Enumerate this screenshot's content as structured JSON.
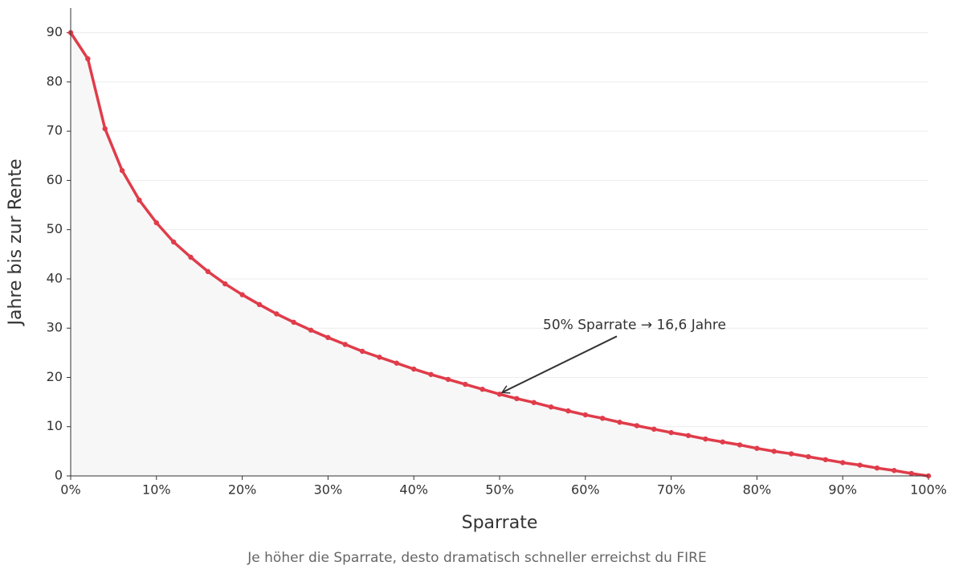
{
  "chart_data": {
    "type": "line",
    "x_label": "Sparrate",
    "y_label": "Jahre bis zur Rente",
    "caption": "Je höher die Sparrate, desto dramatisch schneller erreichst du FIRE",
    "x": [
      0,
      2,
      4,
      6,
      8,
      10,
      12,
      14,
      16,
      18,
      20,
      22,
      24,
      26,
      28,
      30,
      32,
      34,
      36,
      38,
      40,
      42,
      44,
      46,
      48,
      50,
      52,
      54,
      56,
      58,
      60,
      62,
      64,
      66,
      68,
      70,
      72,
      74,
      76,
      78,
      80,
      82,
      84,
      86,
      88,
      90,
      92,
      94,
      96,
      98,
      100
    ],
    "series": [
      {
        "color": "#e03c4a",
        "values": [
          90,
          84.7,
          70.5,
          62,
          56,
          51.4,
          47.5,
          44.4,
          41.5,
          39,
          36.8,
          34.8,
          32.9,
          31.2,
          29.6,
          28.1,
          26.7,
          25.3,
          24.1,
          22.9,
          21.7,
          20.6,
          19.6,
          18.6,
          17.6,
          16.6,
          15.7,
          14.9,
          14.0,
          13.2,
          12.4,
          11.7,
          10.9,
          10.2,
          9.5,
          8.8,
          8.2,
          7.5,
          6.9,
          6.3,
          5.6,
          5.0,
          4.5,
          3.9,
          3.3,
          2.7,
          2.2,
          1.6,
          1.1,
          0.5,
          0
        ]
      }
    ],
    "area_fill": "#f7f7f7",
    "annotation": {
      "text": "50% Sparrate → 16,6 Jahre",
      "x": 50,
      "y": 16.6
    },
    "xlim": [
      0,
      100
    ],
    "xticks": [
      {
        "value": 0,
        "label": "0%"
      },
      {
        "value": 10,
        "label": "10%"
      },
      {
        "value": 20,
        "label": "20%"
      },
      {
        "value": 30,
        "label": "30%"
      },
      {
        "value": 40,
        "label": "40%"
      },
      {
        "value": 50,
        "label": "50%"
      },
      {
        "value": 60,
        "label": "60%"
      },
      {
        "value": 70,
        "label": "70%"
      },
      {
        "value": 80,
        "label": "80%"
      },
      {
        "value": 90,
        "label": "90%"
      },
      {
        "value": 100,
        "label": "100%"
      }
    ],
    "ylim": [
      0,
      95
    ],
    "yticks": [
      0,
      10,
      20,
      30,
      40,
      50,
      60,
      70,
      80,
      90
    ],
    "grid": true
  }
}
